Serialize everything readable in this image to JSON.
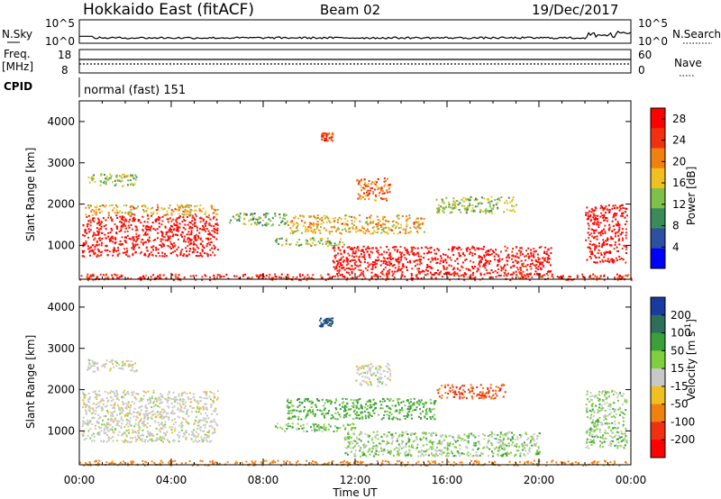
{
  "header": {
    "station": "Hokkaido East (fitACF)",
    "beam": "Beam 02",
    "date": "19/Dec/2017"
  },
  "top_panels": {
    "nsky_label": "N.Sky",
    "nsky_ticks": [
      "10^5",
      "10^0"
    ],
    "nsearch_label": "N.Search",
    "nsearch_ticks": [
      "10^5",
      "10^0"
    ],
    "freq_label": "Freq.",
    "freq_unit": "[MHz]",
    "freq_ticks": [
      "18",
      "8"
    ],
    "nave_label": "Nave",
    "nave_ticks": [
      "60",
      "0"
    ],
    "cpid_label": "CPID",
    "cpid_value": "normal (fast) 151"
  },
  "chart_data": [
    {
      "type": "heatmap",
      "title": "",
      "xlabel": "Time UT",
      "ylabel": "Slant Range [km]",
      "x_ticks": [
        "00:00",
        "04:00",
        "08:00",
        "12:00",
        "16:00",
        "20:00",
        "00:00"
      ],
      "x_range_hours": [
        0,
        24
      ],
      "y_ticks": [
        1000,
        2000,
        3000,
        4000
      ],
      "ylim": [
        180,
        4500
      ],
      "colorbar_label": "Power [dB]",
      "colorbar_ticks": [
        4,
        8,
        12,
        16,
        20,
        24,
        28
      ],
      "colorbar_range": [
        0,
        30
      ],
      "colors": [
        "#0000ff",
        "#2d50a0",
        "#3a8a5a",
        "#7fbf4a",
        "#f0c020",
        "#f08010",
        "#f03010",
        "#ff0000"
      ],
      "regions": [
        {
          "t0": 0.1,
          "t1": 6.0,
          "r0": 750,
          "r1": 1750,
          "value": 28
        },
        {
          "t0": 0.2,
          "t1": 6.0,
          "r0": 1750,
          "r1": 2000,
          "value": 18
        },
        {
          "t0": 0.3,
          "t1": 2.5,
          "r0": 2450,
          "r1": 2750,
          "value": 14
        },
        {
          "t0": 6.5,
          "t1": 9.0,
          "r0": 1500,
          "r1": 1800,
          "value": 12
        },
        {
          "t0": 8.5,
          "t1": 11.5,
          "r0": 1000,
          "r1": 1200,
          "value": 14
        },
        {
          "t0": 9.0,
          "t1": 15.0,
          "r0": 1300,
          "r1": 1750,
          "value": 18
        },
        {
          "t0": 11.0,
          "t1": 20.5,
          "r0": 300,
          "r1": 1000,
          "value": 28
        },
        {
          "t0": 12.0,
          "t1": 13.5,
          "r0": 2100,
          "r1": 2650,
          "value": 22
        },
        {
          "t0": 15.5,
          "t1": 19.0,
          "r0": 1800,
          "r1": 2200,
          "value": 14
        },
        {
          "t0": 10.5,
          "t1": 11.0,
          "r0": 3550,
          "r1": 3750,
          "value": 24
        },
        {
          "t0": 22.0,
          "t1": 23.8,
          "r0": 600,
          "r1": 2000,
          "value": 28
        },
        {
          "t0": 0.0,
          "t1": 24.0,
          "r0": 180,
          "r1": 320,
          "value": 26
        }
      ]
    },
    {
      "type": "heatmap",
      "title": "",
      "xlabel": "Time UT",
      "ylabel": "Slant Range [km]",
      "x_ticks": [
        "00:00",
        "04:00",
        "08:00",
        "12:00",
        "16:00",
        "20:00",
        "00:00"
      ],
      "x_range_hours": [
        0,
        24
      ],
      "y_ticks": [
        1000,
        2000,
        3000,
        4000
      ],
      "ylim": [
        180,
        4500
      ],
      "colorbar_label": "Velocity [m s^-1]",
      "colorbar_tick_labels": [
        "200",
        "100",
        "50",
        "15",
        "-15",
        "-50",
        "-100",
        "-200"
      ],
      "colors": [
        "#1a3aa0",
        "#2d6f5a",
        "#3aa03a",
        "#7fd040",
        "#c8c8c8",
        "#f0c020",
        "#f08010",
        "#f03010",
        "#ff0000"
      ],
      "regions": [
        {
          "t0": 0.1,
          "t1": 6.0,
          "r0": 750,
          "r1": 2000,
          "value": 0
        },
        {
          "t0": 0.3,
          "t1": 2.5,
          "r0": 2450,
          "r1": 2750,
          "value": 0
        },
        {
          "t0": 8.5,
          "t1": 12.0,
          "r0": 1000,
          "r1": 1200,
          "value": 30
        },
        {
          "t0": 9.0,
          "t1": 15.5,
          "r0": 1300,
          "r1": 1800,
          "value": 40
        },
        {
          "t0": 11.5,
          "t1": 20.0,
          "r0": 400,
          "r1": 1000,
          "value": 20
        },
        {
          "t0": 12.0,
          "t1": 13.5,
          "r0": 2100,
          "r1": 2650,
          "value": 0
        },
        {
          "t0": 15.5,
          "t1": 18.5,
          "r0": 1800,
          "r1": 2150,
          "value": -80
        },
        {
          "t0": 10.4,
          "t1": 11.0,
          "r0": 3550,
          "r1": 3750,
          "value": 150
        },
        {
          "t0": 22.0,
          "t1": 23.8,
          "r0": 600,
          "r1": 2000,
          "value": 20
        },
        {
          "t0": 0.0,
          "t1": 24.0,
          "r0": 180,
          "r1": 300,
          "value": -50
        }
      ]
    }
  ]
}
